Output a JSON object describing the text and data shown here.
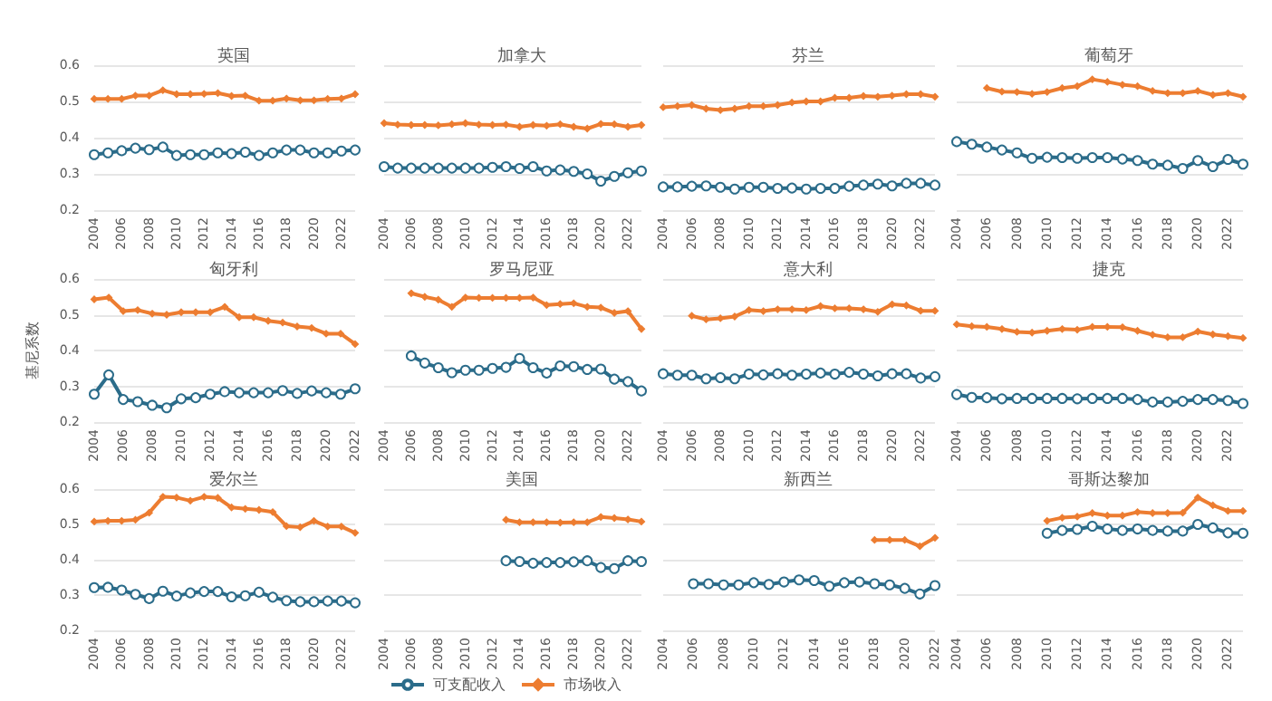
{
  "chart_data": [
    {
      "type": "line",
      "title": "英国",
      "categories": [
        "2004",
        null,
        "2006",
        null,
        "2008",
        null,
        "2010",
        null,
        "2012",
        null,
        "2014",
        null,
        "2016",
        null,
        "2018",
        null,
        "2020",
        null,
        "2022",
        null
      ],
      "ylim": [
        0.2,
        0.6
      ],
      "yticks": [
        0.2,
        0.3,
        0.4,
        0.5,
        0.6
      ],
      "grid": "y",
      "series": [
        {
          "color": "#2b6c8a",
          "marker": "circle",
          "values": [
            0.353,
            0.358,
            0.364,
            0.371,
            0.367,
            0.374,
            0.351,
            0.353,
            0.353,
            0.358,
            0.356,
            0.36,
            0.351,
            0.358,
            0.366,
            0.366,
            0.358,
            0.358,
            0.363,
            0.366
          ]
        },
        {
          "color": "#ed7d31",
          "marker": "diamond",
          "values": [
            0.507,
            0.507,
            0.507,
            0.516,
            0.516,
            0.531,
            0.52,
            0.52,
            0.521,
            0.523,
            0.515,
            0.516,
            0.502,
            0.502,
            0.508,
            0.503,
            0.503,
            0.507,
            0.508,
            0.52
          ]
        }
      ]
    },
    {
      "type": "line",
      "title": "加拿大",
      "categories": [
        "2004",
        null,
        "2006",
        null,
        "2008",
        null,
        "2010",
        null,
        "2012",
        null,
        "2014",
        null,
        "2016",
        null,
        "2018",
        null,
        "2020",
        null,
        "2022",
        null
      ],
      "ylim": [
        0.2,
        0.6
      ],
      "yticks": [
        0.2,
        0.3,
        0.4,
        0.5,
        0.6
      ],
      "grid": "y",
      "tick_labels": "x",
      "series": [
        {
          "color": "#2b6c8a",
          "marker": "circle",
          "values": [
            0.32,
            0.316,
            0.316,
            0.316,
            0.316,
            0.316,
            0.316,
            0.316,
            0.318,
            0.32,
            0.315,
            0.32,
            0.308,
            0.311,
            0.307,
            0.3,
            0.28,
            0.293,
            0.303,
            0.308
          ]
        },
        {
          "color": "#ed7d31",
          "marker": "diamond",
          "values": [
            0.44,
            0.436,
            0.435,
            0.435,
            0.434,
            0.437,
            0.44,
            0.436,
            0.435,
            0.436,
            0.43,
            0.435,
            0.433,
            0.437,
            0.43,
            0.425,
            0.438,
            0.437,
            0.43,
            0.435
          ]
        }
      ]
    },
    {
      "type": "line",
      "title": "芬兰",
      "categories": [
        "2004",
        null,
        "2006",
        null,
        "2008",
        null,
        "2010",
        null,
        "2012",
        null,
        "2014",
        null,
        "2016",
        null,
        "2018",
        null,
        "2020",
        null,
        "2022",
        null
      ],
      "ylim": [
        0.2,
        0.6
      ],
      "yticks": [
        0.2,
        0.3,
        0.4,
        0.5,
        0.6
      ],
      "grid": "y",
      "tick_labels": "x",
      "series": [
        {
          "color": "#2b6c8a",
          "marker": "circle",
          "values": [
            0.264,
            0.264,
            0.266,
            0.267,
            0.263,
            0.258,
            0.263,
            0.263,
            0.26,
            0.261,
            0.258,
            0.26,
            0.26,
            0.266,
            0.269,
            0.272,
            0.267,
            0.274,
            0.274,
            0.269
          ]
        },
        {
          "color": "#ed7d31",
          "marker": "diamond",
          "values": [
            0.484,
            0.487,
            0.49,
            0.48,
            0.476,
            0.48,
            0.487,
            0.487,
            0.49,
            0.497,
            0.5,
            0.5,
            0.51,
            0.51,
            0.515,
            0.513,
            0.516,
            0.52,
            0.52,
            0.513
          ]
        }
      ]
    },
    {
      "type": "line",
      "title": "葡萄牙",
      "categories": [
        "2004",
        null,
        "2006",
        null,
        "2008",
        null,
        "2010",
        null,
        "2012",
        null,
        "2014",
        null,
        "2016",
        null,
        "2018",
        null,
        "2020",
        null,
        "2022",
        null
      ],
      "ylim": [
        0.2,
        0.6
      ],
      "yticks": [
        0.2,
        0.3,
        0.4,
        0.5,
        0.6
      ],
      "grid": "y",
      "tick_labels": "x",
      "series": [
        {
          "color": "#2b6c8a",
          "marker": "circle",
          "values": [
            0.389,
            0.382,
            0.374,
            0.366,
            0.358,
            0.343,
            0.346,
            0.345,
            0.343,
            0.345,
            0.345,
            0.341,
            0.337,
            0.327,
            0.324,
            0.315,
            0.337,
            0.32,
            0.34,
            0.327
          ]
        },
        {
          "color": "#ed7d31",
          "marker": "diamond",
          "values": [
            null,
            null,
            0.537,
            0.527,
            0.526,
            0.521,
            0.526,
            0.537,
            0.542,
            0.561,
            0.554,
            0.546,
            0.542,
            0.529,
            0.523,
            0.523,
            0.529,
            0.518,
            0.523,
            0.513
          ]
        }
      ]
    },
    {
      "type": "line",
      "title": "匈牙利",
      "ylabel": "基尼系数",
      "categories": [
        "2004",
        null,
        "2006",
        null,
        "2008",
        null,
        "2010",
        null,
        "2012",
        null,
        "2014",
        null,
        "2016",
        null,
        "2018",
        null,
        "2020",
        null,
        "2022"
      ],
      "ylim": [
        0.2,
        0.6
      ],
      "yticks": [
        0.2,
        0.3,
        0.4,
        0.5,
        0.6
      ],
      "grid": "y",
      "series": [
        {
          "color": "#2b6c8a",
          "marker": "circle",
          "values": [
            0.278,
            0.332,
            0.263,
            0.257,
            0.247,
            0.24,
            0.265,
            0.268,
            0.278,
            0.285,
            0.282,
            0.282,
            0.282,
            0.288,
            0.28,
            0.287,
            0.282,
            0.278,
            0.293
          ]
        },
        {
          "color": "#ed7d31",
          "marker": "diamond",
          "values": [
            0.543,
            0.548,
            0.51,
            0.513,
            0.503,
            0.5,
            0.507,
            0.507,
            0.507,
            0.522,
            0.493,
            0.493,
            0.483,
            0.478,
            0.467,
            0.463,
            0.447,
            0.447,
            0.418
          ]
        }
      ]
    },
    {
      "type": "line",
      "title": "罗马尼亚",
      "categories": [
        "2004",
        null,
        "2006",
        null,
        "2008",
        null,
        "2010",
        null,
        "2012",
        null,
        "2014",
        null,
        "2016",
        null,
        "2018",
        null,
        "2020",
        null,
        "2022",
        null
      ],
      "ylim": [
        0.2,
        0.6
      ],
      "yticks": [
        0.2,
        0.3,
        0.4,
        0.5,
        0.6
      ],
      "grid": "y",
      "tick_labels": "x",
      "series": [
        {
          "color": "#2b6c8a",
          "marker": "circle",
          "values": [
            null,
            null,
            0.385,
            0.365,
            0.352,
            0.338,
            0.345,
            0.345,
            0.35,
            0.353,
            0.378,
            0.352,
            0.337,
            0.357,
            0.355,
            0.347,
            0.348,
            0.32,
            0.313,
            0.287
          ]
        },
        {
          "color": "#ed7d31",
          "marker": "diamond",
          "values": [
            null,
            null,
            0.56,
            0.55,
            0.542,
            0.522,
            0.548,
            0.547,
            0.547,
            0.547,
            0.547,
            0.548,
            0.527,
            0.53,
            0.532,
            0.522,
            0.52,
            0.505,
            0.51,
            0.46
          ]
        }
      ]
    },
    {
      "type": "line",
      "title": "意大利",
      "categories": [
        "2004",
        null,
        "2006",
        null,
        "2008",
        null,
        "2010",
        null,
        "2012",
        null,
        "2014",
        null,
        "2016",
        null,
        "2018",
        null,
        "2020",
        null,
        "2022",
        null
      ],
      "ylim": [
        0.2,
        0.6
      ],
      "yticks": [
        0.2,
        0.3,
        0.4,
        0.5,
        0.6
      ],
      "grid": "y",
      "tick_labels": "x",
      "series": [
        {
          "color": "#2b6c8a",
          "marker": "circle",
          "values": [
            0.335,
            0.331,
            0.331,
            0.321,
            0.324,
            0.321,
            0.334,
            0.332,
            0.335,
            0.331,
            0.334,
            0.337,
            0.334,
            0.339,
            0.334,
            0.329,
            0.335,
            0.335,
            0.323,
            0.327
          ]
        },
        {
          "color": "#ed7d31",
          "marker": "diamond",
          "values": [
            null,
            null,
            0.497,
            0.487,
            0.49,
            0.495,
            0.513,
            0.51,
            0.515,
            0.515,
            0.513,
            0.524,
            0.518,
            0.518,
            0.515,
            0.508,
            0.529,
            0.526,
            0.511,
            0.511
          ]
        }
      ]
    },
    {
      "type": "line",
      "title": "捷克",
      "categories": [
        "2004",
        null,
        "2006",
        null,
        "2008",
        null,
        "2010",
        null,
        "2012",
        null,
        "2014",
        null,
        "2016",
        null,
        "2018",
        null,
        "2020",
        null,
        "2022",
        null
      ],
      "ylim": [
        0.2,
        0.6
      ],
      "yticks": [
        0.2,
        0.3,
        0.4,
        0.5,
        0.6
      ],
      "grid": "y",
      "tick_labels": "x",
      "series": [
        {
          "color": "#2b6c8a",
          "marker": "circle",
          "values": [
            0.277,
            0.269,
            0.268,
            0.265,
            0.266,
            0.266,
            0.266,
            0.266,
            0.265,
            0.266,
            0.266,
            0.266,
            0.263,
            0.256,
            0.256,
            0.258,
            0.263,
            0.263,
            0.26,
            0.252
          ]
        },
        {
          "color": "#ed7d31",
          "marker": "diamond",
          "values": [
            0.473,
            0.468,
            0.466,
            0.46,
            0.452,
            0.45,
            0.455,
            0.46,
            0.458,
            0.466,
            0.466,
            0.465,
            0.455,
            0.444,
            0.437,
            0.437,
            0.453,
            0.445,
            0.44,
            0.435
          ]
        }
      ]
    },
    {
      "type": "line",
      "title": "爱尔兰",
      "categories": [
        "2004",
        null,
        "2006",
        null,
        "2008",
        null,
        "2010",
        null,
        "2012",
        null,
        "2014",
        null,
        "2016",
        null,
        "2018",
        null,
        "2020",
        null,
        "2022",
        null
      ],
      "ylim": [
        0.2,
        0.6
      ],
      "yticks": [
        0.2,
        0.3,
        0.4,
        0.5,
        0.6
      ],
      "grid": "y",
      "series": [
        {
          "color": "#2b6c8a",
          "marker": "circle",
          "values": [
            0.321,
            0.322,
            0.314,
            0.302,
            0.29,
            0.311,
            0.297,
            0.306,
            0.31,
            0.31,
            0.295,
            0.298,
            0.308,
            0.294,
            0.284,
            0.281,
            0.281,
            0.283,
            0.283,
            0.278
          ]
        },
        {
          "color": "#ed7d31",
          "marker": "diamond",
          "values": [
            0.508,
            0.51,
            0.51,
            0.513,
            0.533,
            0.578,
            0.576,
            0.567,
            0.578,
            0.575,
            0.548,
            0.544,
            0.541,
            0.535,
            0.495,
            0.492,
            0.51,
            0.494,
            0.494,
            0.476
          ]
        }
      ]
    },
    {
      "type": "line",
      "title": "美国",
      "legend": "bottom",
      "categories": [
        "2004",
        null,
        "2006",
        null,
        "2008",
        null,
        "2010",
        null,
        "2012",
        null,
        "2014",
        null,
        "2016",
        null,
        "2018",
        null,
        "2020",
        null,
        "2022",
        null
      ],
      "ylim": [
        0.2,
        0.6
      ],
      "yticks": [
        0.2,
        0.3,
        0.4,
        0.5,
        0.6
      ],
      "grid": "y",
      "tick_labels": "x",
      "series": [
        {
          "name": "可支配收入",
          "color": "#2b6c8a",
          "marker": "circle",
          "values": [
            null,
            null,
            null,
            null,
            null,
            null,
            null,
            null,
            null,
            0.397,
            0.395,
            0.39,
            0.392,
            0.392,
            0.394,
            0.397,
            0.378,
            0.375,
            0.397,
            0.395
          ]
        },
        {
          "name": "市场收入",
          "color": "#ed7d31",
          "marker": "diamond",
          "values": [
            null,
            null,
            null,
            null,
            null,
            null,
            null,
            null,
            null,
            0.513,
            0.506,
            0.506,
            0.506,
            0.505,
            0.506,
            0.506,
            0.521,
            0.518,
            0.514,
            0.508
          ]
        }
      ]
    },
    {
      "type": "line",
      "title": "新西兰",
      "categories": [
        "2004",
        null,
        "2006",
        null,
        "2008",
        null,
        "2010",
        null,
        "2012",
        null,
        "2014",
        null,
        "2016",
        null,
        "2018",
        null,
        "2020",
        null,
        "2022"
      ],
      "ylim": [
        0.2,
        0.6
      ],
      "yticks": [
        0.2,
        0.3,
        0.4,
        0.5,
        0.6
      ],
      "grid": "y",
      "tick_labels": "x",
      "series": [
        {
          "color": "#2b6c8a",
          "marker": "circle",
          "values": [
            null,
            null,
            0.332,
            0.332,
            0.329,
            0.329,
            0.335,
            0.33,
            0.337,
            0.343,
            0.341,
            0.325,
            0.335,
            0.337,
            0.332,
            0.329,
            0.319,
            0.303,
            0.327
          ]
        },
        {
          "color": "#ed7d31",
          "marker": "diamond",
          "values": [
            null,
            null,
            null,
            null,
            null,
            null,
            null,
            null,
            null,
            null,
            null,
            null,
            null,
            null,
            0.456,
            0.456,
            0.456,
            0.438,
            0.462
          ]
        }
      ]
    },
    {
      "type": "line",
      "title": "哥斯达黎加",
      "categories": [
        "2004",
        null,
        "2006",
        null,
        "2008",
        null,
        "2010",
        null,
        "2012",
        null,
        "2014",
        null,
        "2016",
        null,
        "2018",
        null,
        "2020",
        null,
        "2022",
        null
      ],
      "ylim": [
        0.2,
        0.6
      ],
      "yticks": [
        0.2,
        0.3,
        0.4,
        0.5,
        0.6
      ],
      "grid": "y",
      "tick_labels": "x",
      "series": [
        {
          "color": "#2b6c8a",
          "marker": "circle",
          "values": [
            null,
            null,
            null,
            null,
            null,
            null,
            0.475,
            0.483,
            0.486,
            0.495,
            0.487,
            0.483,
            0.487,
            0.483,
            0.481,
            0.481,
            0.5,
            0.49,
            0.476,
            0.475
          ]
        },
        {
          "color": "#ed7d31",
          "marker": "diamond",
          "values": [
            null,
            null,
            null,
            null,
            null,
            null,
            0.51,
            0.519,
            0.522,
            0.532,
            0.525,
            0.525,
            0.535,
            0.532,
            0.532,
            0.533,
            0.576,
            0.554,
            0.538,
            0.538
          ]
        }
      ]
    }
  ]
}
